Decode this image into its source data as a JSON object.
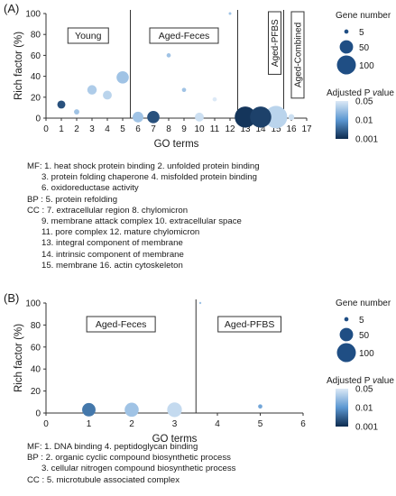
{
  "chart_data": [
    {
      "type": "scatter",
      "panel": "(A)",
      "xlabel": "GO terms",
      "ylabel": "Rich factor (%)",
      "xlim": [
        0,
        17
      ],
      "ylim": [
        0,
        100
      ],
      "xticks": [
        "0",
        "1",
        "2",
        "3",
        "4",
        "5",
        "6",
        "7",
        "8",
        "9",
        "10",
        "11",
        "12",
        "13",
        "14",
        "15",
        "16",
        "17"
      ],
      "yticks": [
        "0",
        "20",
        "40",
        "60",
        "80",
        "100"
      ],
      "groups": [
        {
          "label": "Young",
          "x_start": 0,
          "x_end": 5.5
        },
        {
          "label": "Aged-Feces",
          "x_start": 5.5,
          "x_end": 12.5
        },
        {
          "label": "Aged-PFBS",
          "x_start": 12.5,
          "x_end": 15.5,
          "vertical": true
        },
        {
          "label": "Aged-Combined",
          "x_start": 15.5,
          "x_end": 17,
          "vertical": true
        }
      ],
      "dividers": [
        5.5,
        12.5,
        15.5
      ],
      "points": [
        {
          "x": 1,
          "y": 13,
          "gene_number": 18,
          "adjusted_p": 0.002
        },
        {
          "x": 2,
          "y": 6,
          "gene_number": 8,
          "adjusted_p": 0.02
        },
        {
          "x": 3,
          "y": 27,
          "gene_number": 25,
          "adjusted_p": 0.025
        },
        {
          "x": 4,
          "y": 22,
          "gene_number": 22,
          "adjusted_p": 0.03
        },
        {
          "x": 5,
          "y": 39,
          "gene_number": 42,
          "adjusted_p": 0.02
        },
        {
          "x": 6,
          "y": 1,
          "gene_number": 32,
          "adjusted_p": 0.02
        },
        {
          "x": 7,
          "y": 1,
          "gene_number": 42,
          "adjusted_p": 0.002
        },
        {
          "x": 8,
          "y": 60,
          "gene_number": 5,
          "adjusted_p": 0.02
        },
        {
          "x": 9,
          "y": 27,
          "gene_number": 5,
          "adjusted_p": 0.02
        },
        {
          "x": 10,
          "y": 1,
          "gene_number": 22,
          "adjusted_p": 0.04
        },
        {
          "x": 11,
          "y": 18,
          "gene_number": 5,
          "adjusted_p": 0.05
        },
        {
          "x": 12,
          "y": 100,
          "gene_number": 2,
          "adjusted_p": 0.02
        },
        {
          "x": 13,
          "y": 1,
          "gene_number": 125,
          "adjusted_p": 0.0012
        },
        {
          "x": 14,
          "y": 1,
          "gene_number": 125,
          "adjusted_p": 0.0015
        },
        {
          "x": 15,
          "y": 1,
          "gene_number": 140,
          "adjusted_p": 0.03
        },
        {
          "x": 16,
          "y": 1,
          "gene_number": 10,
          "adjusted_p": 0.04
        }
      ],
      "legend_size": {
        "title": "Gene number",
        "values": [
          "5",
          "50",
          "100"
        ]
      },
      "legend_color": {
        "title": "Adjusted P value",
        "ticks": [
          "0.05",
          "0.01",
          "0.001"
        ]
      },
      "annotations": [
        "MF: 1. heat shock protein binding 2. unfolded protein binding",
        "      3. protein folding chaperone 4. misfolded protein binding",
        "      6. oxidoreductase activity",
        "BP : 5. protein refolding",
        "CC : 7. extracellular region 8. chylomicron",
        "      9. membrane attack complex 10. extracellular space",
        "      11. pore complex 12. mature chylomicron",
        "      13. integral component of membrane",
        "      14. intrinsic component of membrane",
        "      15. membrane 16. actin cytoskeleton"
      ]
    },
    {
      "type": "scatter",
      "panel": "(B)",
      "xlabel": "GO terms",
      "ylabel": "Rich factor (%)",
      "xlim": [
        0,
        6
      ],
      "ylim": [
        0,
        100
      ],
      "xticks": [
        "0",
        "1",
        "2",
        "3",
        "4",
        "5",
        "6"
      ],
      "yticks": [
        "0",
        "20",
        "40",
        "60",
        "80",
        "100"
      ],
      "groups": [
        {
          "label": "Aged-Feces",
          "x_start": 0,
          "x_end": 3.5
        },
        {
          "label": "Aged-PFBS",
          "x_start": 3.5,
          "x_end": 6
        }
      ],
      "dividers": [
        3.5
      ],
      "points": [
        {
          "x": 1,
          "y": 3,
          "gene_number": 50,
          "adjusted_p": 0.004
        },
        {
          "x": 2,
          "y": 3,
          "gene_number": 55,
          "adjusted_p": 0.02
        },
        {
          "x": 3,
          "y": 3,
          "gene_number": 60,
          "adjusted_p": 0.035
        },
        {
          "x": 5,
          "y": 6,
          "gene_number": 5,
          "adjusted_p": 0.01
        },
        {
          "x": 3.6,
          "y": 100,
          "gene_number": 1,
          "adjusted_p": 0.02
        }
      ],
      "legend_size": {
        "title": "Gene number",
        "values": [
          "5",
          "50",
          "100"
        ]
      },
      "legend_color": {
        "title": "Adjusted P value",
        "ticks": [
          "0.05",
          "0.01",
          "0.001"
        ]
      },
      "annotations": [
        "MF: 1. DNA binding 4. peptidoglycan binding",
        "BP : 2. organic cyclic compound biosynthetic process",
        "      3. cellular nitrogen compound biosynthetic process",
        "CC : 5. microtubule associated complex"
      ]
    }
  ]
}
